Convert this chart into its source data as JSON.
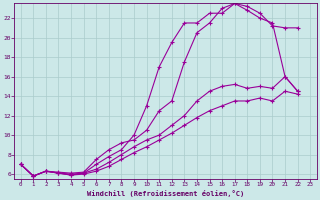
{
  "xlabel": "Windchill (Refroidissement éolien,°C)",
  "bg_color": "#cce8e8",
  "line_color": "#990099",
  "grid_color": "#aacccc",
  "axis_label_color": "#660066",
  "tick_color": "#660066",
  "xlim": [
    -0.5,
    23.5
  ],
  "ylim": [
    5.5,
    23.5
  ],
  "yticks": [
    6,
    8,
    10,
    12,
    14,
    16,
    18,
    20,
    22
  ],
  "xticks": [
    0,
    1,
    2,
    3,
    4,
    5,
    6,
    7,
    8,
    9,
    10,
    11,
    12,
    13,
    14,
    15,
    16,
    17,
    18,
    19,
    20,
    21,
    22,
    23
  ],
  "line1_x": [
    0,
    1,
    2,
    3,
    4,
    5,
    6,
    7,
    8,
    9,
    10,
    11,
    12,
    13,
    14,
    15,
    16,
    17,
    18,
    19,
    20,
    21,
    22
  ],
  "line1_y": [
    7.0,
    5.8,
    6.3,
    6.1,
    5.9,
    6.1,
    7.0,
    7.8,
    8.5,
    10.0,
    13.0,
    17.0,
    19.5,
    21.5,
    21.5,
    22.5,
    22.5,
    23.5,
    23.2,
    22.5,
    21.2,
    21.0,
    21.0
  ],
  "line2_x": [
    0,
    1,
    2,
    3,
    4,
    5,
    6,
    7,
    8,
    9,
    10,
    11,
    12,
    13,
    14,
    15,
    16,
    17,
    18,
    19,
    20,
    21,
    22
  ],
  "line2_y": [
    7.0,
    5.8,
    6.3,
    6.2,
    6.1,
    6.2,
    7.5,
    8.5,
    9.2,
    9.5,
    10.5,
    12.5,
    13.5,
    17.5,
    20.5,
    21.5,
    23.0,
    23.5,
    22.8,
    22.0,
    21.5,
    16.0,
    14.5
  ],
  "line3_x": [
    0,
    1,
    2,
    3,
    4,
    5,
    6,
    7,
    8,
    9,
    10,
    11,
    12,
    13,
    14,
    15,
    16,
    17,
    18,
    19,
    20,
    21,
    22
  ],
  "line3_y": [
    7.0,
    5.8,
    6.3,
    6.1,
    6.0,
    6.1,
    6.5,
    7.2,
    8.0,
    8.8,
    9.5,
    10.0,
    11.0,
    12.0,
    13.5,
    14.5,
    15.0,
    15.2,
    14.8,
    15.0,
    14.8,
    16.0,
    14.5
  ],
  "line4_x": [
    0,
    1,
    2,
    3,
    4,
    5,
    6,
    7,
    8,
    9,
    10,
    11,
    12,
    13,
    14,
    15,
    16,
    17,
    18,
    19,
    20,
    21,
    22
  ],
  "line4_y": [
    7.0,
    5.8,
    6.3,
    6.1,
    5.9,
    6.0,
    6.3,
    6.8,
    7.5,
    8.2,
    8.8,
    9.5,
    10.2,
    11.0,
    11.8,
    12.5,
    13.0,
    13.5,
    13.5,
    13.8,
    13.5,
    14.5,
    14.2
  ]
}
